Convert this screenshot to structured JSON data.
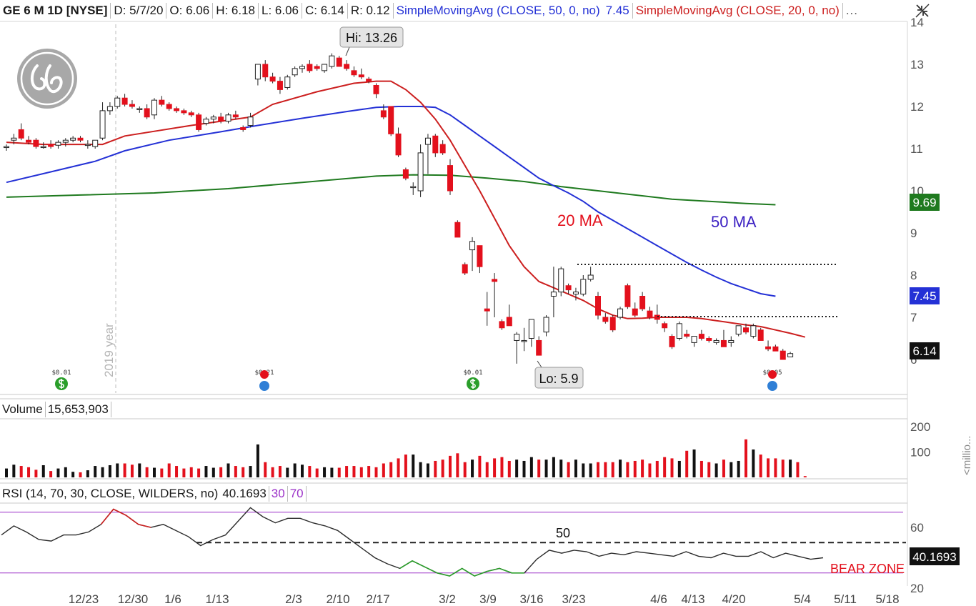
{
  "header": {
    "symbol": "GE 6 M 1D [NYSE]",
    "date": "D: 5/7/20",
    "open": "O: 6.06",
    "high": "H: 6.18",
    "low": "L: 6.06",
    "close": "C: 6.14",
    "range": "R: 0.12",
    "sma50_label": "SimpleMovingAvg (CLOSE, 50, 0, no)",
    "sma50_value": "7.45",
    "sma20_label": "SimpleMovingAvg (CLOSE, 20, 0, no)",
    "more": "..."
  },
  "colors": {
    "up": "#ffffff",
    "down": "#e3101c",
    "sma20": "#cc1f1f",
    "sma50": "#2431d6",
    "sma200": "#1f7a1f",
    "rsi_purple": "#9b30c8",
    "rsi_green": "#2a9e2a",
    "annot_red": "#e3101c",
    "annot_blue": "#3a1fc2"
  },
  "price_panel": {
    "hi_label": "Hi: 13.26",
    "lo_label": "Lo: 5.9",
    "year_label": "2019 year",
    "annotation_20ma": "20 MA",
    "annotation_50ma": "50 MA",
    "badge_sma200": "9.69",
    "badge_sma50": "7.45",
    "badge_last": "6.14",
    "y_ticks": [
      "6",
      "7",
      "8",
      "9",
      "10",
      "11",
      "12",
      "13",
      "14"
    ],
    "dividends": [
      "$0.01",
      "$0.21",
      "$0.01",
      "$0.05"
    ]
  },
  "volume_panel": {
    "label": "Volume",
    "value": "15,653,903",
    "y_ticks": [
      "100",
      "200"
    ],
    "unit": "<millio..."
  },
  "rsi_panel": {
    "label": "RSI (14, 70, 30, CLOSE, WILDERS, no)",
    "value": "40.1693",
    "ob_level": "70",
    "os_level": "30",
    "y_ticks": [
      "20",
      "60"
    ],
    "annotation_50": "50",
    "bear_zone": "BEAR ZONE",
    "badge": "40.1693"
  },
  "x_axis": {
    "labels": [
      "12/23",
      "12/30",
      "1/6",
      "1/13",
      "2/3",
      "2/10",
      "2/17",
      "3/2",
      "3/9",
      "3/16",
      "3/23",
      "4/6",
      "4/13",
      "4/20",
      "5/4",
      "5/11",
      "5/18"
    ]
  },
  "chart_data": {
    "type": "candlestick",
    "title": "GE 6 M 1D [NYSE]",
    "x_labels": [
      "12/23",
      "12/30",
      "1/6",
      "1/13",
      "2/3",
      "2/10",
      "2/17",
      "3/2",
      "3/9",
      "3/16",
      "3/23",
      "4/6",
      "4/13",
      "4/20",
      "5/4",
      "5/11",
      "5/18"
    ],
    "ylim": [
      5.5,
      14.2
    ],
    "candles": [
      {
        "o": 11.05,
        "h": 11.1,
        "l": 10.95,
        "c": 11.05
      },
      {
        "o": 11.2,
        "h": 11.35,
        "l": 11.1,
        "c": 11.25
      },
      {
        "o": 11.45,
        "h": 11.6,
        "l": 11.2,
        "c": 11.25
      },
      {
        "o": 11.2,
        "h": 11.3,
        "l": 11.1,
        "c": 11.15
      },
      {
        "o": 11.2,
        "h": 11.25,
        "l": 11.0,
        "c": 11.05
      },
      {
        "o": 11.05,
        "h": 11.15,
        "l": 11.0,
        "c": 11.05
      },
      {
        "o": 11.1,
        "h": 11.2,
        "l": 11.0,
        "c": 11.05
      },
      {
        "o": 11.08,
        "h": 11.2,
        "l": 11.0,
        "c": 11.15
      },
      {
        "o": 11.15,
        "h": 11.25,
        "l": 11.05,
        "c": 11.2
      },
      {
        "o": 11.2,
        "h": 11.3,
        "l": 11.15,
        "c": 11.25
      },
      {
        "o": 11.25,
        "h": 11.3,
        "l": 11.15,
        "c": 11.2
      },
      {
        "o": 11.1,
        "h": 11.2,
        "l": 11.0,
        "c": 11.1
      },
      {
        "o": 11.05,
        "h": 11.2,
        "l": 11.0,
        "c": 11.2
      },
      {
        "o": 11.25,
        "h": 12.1,
        "l": 11.2,
        "c": 11.9
      },
      {
        "o": 11.9,
        "h": 12.1,
        "l": 11.8,
        "c": 12.0
      },
      {
        "o": 12.0,
        "h": 12.25,
        "l": 11.95,
        "c": 12.2
      },
      {
        "o": 12.2,
        "h": 12.3,
        "l": 12.0,
        "c": 12.05
      },
      {
        "o": 12.05,
        "h": 12.15,
        "l": 11.95,
        "c": 12.0
      },
      {
        "o": 11.95,
        "h": 12.0,
        "l": 11.85,
        "c": 11.95
      },
      {
        "o": 11.95,
        "h": 12.05,
        "l": 11.7,
        "c": 11.75
      },
      {
        "o": 11.8,
        "h": 12.2,
        "l": 11.7,
        "c": 12.15
      },
      {
        "o": 12.15,
        "h": 12.25,
        "l": 12.0,
        "c": 12.05
      },
      {
        "o": 12.05,
        "h": 12.1,
        "l": 11.9,
        "c": 11.95
      },
      {
        "o": 11.95,
        "h": 12.0,
        "l": 11.85,
        "c": 11.9
      },
      {
        "o": 11.9,
        "h": 11.95,
        "l": 11.8,
        "c": 11.85
      },
      {
        "o": 11.85,
        "h": 11.9,
        "l": 11.75,
        "c": 11.8
      },
      {
        "o": 11.8,
        "h": 11.85,
        "l": 11.4,
        "c": 11.45
      },
      {
        "o": 11.6,
        "h": 11.75,
        "l": 11.55,
        "c": 11.7
      },
      {
        "o": 11.7,
        "h": 11.8,
        "l": 11.6,
        "c": 11.75
      },
      {
        "o": 11.75,
        "h": 11.85,
        "l": 11.6,
        "c": 11.65
      },
      {
        "o": 11.65,
        "h": 11.85,
        "l": 11.6,
        "c": 11.8
      },
      {
        "o": 11.8,
        "h": 11.9,
        "l": 11.7,
        "c": 11.75
      },
      {
        "o": 11.5,
        "h": 11.55,
        "l": 11.4,
        "c": 11.45
      },
      {
        "o": 11.55,
        "h": 11.85,
        "l": 11.5,
        "c": 11.75
      },
      {
        "o": 12.65,
        "h": 13.0,
        "l": 12.5,
        "c": 13.0
      },
      {
        "o": 13.0,
        "h": 13.1,
        "l": 12.6,
        "c": 12.7
      },
      {
        "o": 12.7,
        "h": 12.8,
        "l": 12.55,
        "c": 12.6
      },
      {
        "o": 12.6,
        "h": 12.7,
        "l": 12.3,
        "c": 12.4
      },
      {
        "o": 12.45,
        "h": 12.75,
        "l": 12.4,
        "c": 12.7
      },
      {
        "o": 12.75,
        "h": 12.95,
        "l": 12.7,
        "c": 12.9
      },
      {
        "o": 12.9,
        "h": 13.0,
        "l": 12.8,
        "c": 12.95
      },
      {
        "o": 13.0,
        "h": 13.1,
        "l": 12.8,
        "c": 12.85
      },
      {
        "o": 12.95,
        "h": 13.0,
        "l": 12.85,
        "c": 12.9
      },
      {
        "o": 12.85,
        "h": 13.0,
        "l": 12.8,
        "c": 13.0
      },
      {
        "o": 12.95,
        "h": 13.26,
        "l": 12.9,
        "c": 13.2
      },
      {
        "o": 13.15,
        "h": 13.2,
        "l": 12.95,
        "c": 12.95
      },
      {
        "o": 13.0,
        "h": 13.1,
        "l": 12.85,
        "c": 12.9
      },
      {
        "o": 12.85,
        "h": 12.95,
        "l": 12.7,
        "c": 12.75
      },
      {
        "o": 12.75,
        "h": 12.9,
        "l": 12.65,
        "c": 12.7
      },
      {
        "o": 12.65,
        "h": 12.7,
        "l": 12.55,
        "c": 12.6
      },
      {
        "o": 12.5,
        "h": 12.55,
        "l": 12.2,
        "c": 12.3
      },
      {
        "o": 11.9,
        "h": 12.05,
        "l": 11.7,
        "c": 11.75
      },
      {
        "o": 12.0,
        "h": 12.0,
        "l": 11.3,
        "c": 11.35
      },
      {
        "o": 11.35,
        "h": 11.5,
        "l": 10.8,
        "c": 10.85
      },
      {
        "o": 10.5,
        "h": 10.55,
        "l": 10.25,
        "c": 10.3
      },
      {
        "o": 10.1,
        "h": 10.2,
        "l": 9.9,
        "c": 10.1
      },
      {
        "o": 10.0,
        "h": 11.1,
        "l": 9.85,
        "c": 10.9
      },
      {
        "o": 11.1,
        "h": 11.35,
        "l": 10.4,
        "c": 11.25
      },
      {
        "o": 11.3,
        "h": 11.35,
        "l": 10.8,
        "c": 10.9
      },
      {
        "o": 11.1,
        "h": 11.2,
        "l": 10.85,
        "c": 10.9
      },
      {
        "o": 10.6,
        "h": 10.75,
        "l": 9.9,
        "c": 10.0
      },
      {
        "o": 9.25,
        "h": 9.3,
        "l": 8.9,
        "c": 8.9
      },
      {
        "o": 8.25,
        "h": 8.3,
        "l": 8.0,
        "c": 8.05
      },
      {
        "o": 8.6,
        "h": 8.9,
        "l": 8.1,
        "c": 8.8
      },
      {
        "o": 8.7,
        "h": 8.7,
        "l": 8.05,
        "c": 8.2
      },
      {
        "o": 7.2,
        "h": 7.6,
        "l": 6.8,
        "c": 7.15
      },
      {
        "o": 7.9,
        "h": 8.05,
        "l": 7.0,
        "c": 7.85
      },
      {
        "o": 6.9,
        "h": 6.95,
        "l": 6.7,
        "c": 6.75
      },
      {
        "o": 7.0,
        "h": 7.3,
        "l": 6.8,
        "c": 6.8
      },
      {
        "o": 6.45,
        "h": 6.65,
        "l": 5.9,
        "c": 6.6
      },
      {
        "o": 6.45,
        "h": 6.75,
        "l": 6.2,
        "c": 6.45
      },
      {
        "o": 6.5,
        "h": 6.95,
        "l": 6.3,
        "c": 6.95
      },
      {
        "o": 6.45,
        "h": 6.55,
        "l": 6.1,
        "c": 6.1
      },
      {
        "o": 6.65,
        "h": 7.05,
        "l": 6.55,
        "c": 7.0
      },
      {
        "o": 7.5,
        "h": 8.2,
        "l": 7.0,
        "c": 7.6
      },
      {
        "o": 7.6,
        "h": 8.2,
        "l": 7.5,
        "c": 8.15
      },
      {
        "o": 7.75,
        "h": 7.8,
        "l": 7.55,
        "c": 7.65
      },
      {
        "o": 7.55,
        "h": 7.7,
        "l": 7.4,
        "c": 7.6
      },
      {
        "o": 7.55,
        "h": 8.0,
        "l": 7.5,
        "c": 7.9
      },
      {
        "o": 7.9,
        "h": 8.2,
        "l": 7.85,
        "c": 8.0
      },
      {
        "o": 7.5,
        "h": 7.6,
        "l": 6.95,
        "c": 7.05
      },
      {
        "o": 7.0,
        "h": 7.1,
        "l": 6.85,
        "c": 6.9
      },
      {
        "o": 7.0,
        "h": 7.05,
        "l": 6.65,
        "c": 6.7
      },
      {
        "o": 7.0,
        "h": 7.25,
        "l": 6.95,
        "c": 7.2
      },
      {
        "o": 7.75,
        "h": 7.8,
        "l": 7.2,
        "c": 7.25
      },
      {
        "o": 7.2,
        "h": 7.35,
        "l": 7.0,
        "c": 7.05
      },
      {
        "o": 7.5,
        "h": 7.6,
        "l": 7.15,
        "c": 7.2
      },
      {
        "o": 7.15,
        "h": 7.25,
        "l": 6.95,
        "c": 7.0
      },
      {
        "o": 7.05,
        "h": 7.3,
        "l": 6.85,
        "c": 6.95
      },
      {
        "o": 6.85,
        "h": 6.9,
        "l": 6.65,
        "c": 6.75
      },
      {
        "o": 6.55,
        "h": 6.6,
        "l": 6.25,
        "c": 6.3
      },
      {
        "o": 6.5,
        "h": 6.9,
        "l": 6.45,
        "c": 6.85
      },
      {
        "o": 6.6,
        "h": 6.7,
        "l": 6.5,
        "c": 6.55
      },
      {
        "o": 6.4,
        "h": 6.55,
        "l": 6.3,
        "c": 6.55
      },
      {
        "o": 6.6,
        "h": 6.7,
        "l": 6.45,
        "c": 6.5
      },
      {
        "o": 6.5,
        "h": 6.55,
        "l": 6.4,
        "c": 6.45
      },
      {
        "o": 6.4,
        "h": 6.5,
        "l": 6.35,
        "c": 6.45
      },
      {
        "o": 6.45,
        "h": 6.7,
        "l": 6.3,
        "c": 6.3
      },
      {
        "o": 6.4,
        "h": 6.55,
        "l": 6.3,
        "c": 6.45
      },
      {
        "o": 6.6,
        "h": 6.8,
        "l": 6.55,
        "c": 6.8
      },
      {
        "o": 6.75,
        "h": 6.85,
        "l": 6.6,
        "c": 6.65
      },
      {
        "o": 6.55,
        "h": 6.85,
        "l": 6.5,
        "c": 6.8
      },
      {
        "o": 6.7,
        "h": 6.75,
        "l": 6.45,
        "c": 6.45
      },
      {
        "o": 6.3,
        "h": 6.45,
        "l": 6.2,
        "c": 6.25
      },
      {
        "o": 6.3,
        "h": 6.35,
        "l": 6.2,
        "c": 6.2
      },
      {
        "o": 6.2,
        "h": 6.25,
        "l": 6.0,
        "c": 6.0
      },
      {
        "o": 6.06,
        "h": 6.18,
        "l": 6.06,
        "c": 6.14
      }
    ],
    "sma20": [
      [
        0,
        11.15
      ],
      [
        5,
        11.1
      ],
      [
        13,
        11.1
      ],
      [
        16,
        11.3
      ],
      [
        25,
        11.55
      ],
      [
        33,
        11.75
      ],
      [
        36,
        12.05
      ],
      [
        42,
        12.35
      ],
      [
        47,
        12.55
      ],
      [
        50,
        12.6
      ],
      [
        52,
        12.6
      ],
      [
        54,
        12.4
      ],
      [
        56,
        12.1
      ],
      [
        58,
        11.7
      ],
      [
        60,
        11.2
      ],
      [
        62,
        10.6
      ],
      [
        64,
        10.0
      ],
      [
        66,
        9.35
      ],
      [
        68,
        8.7
      ],
      [
        70,
        8.2
      ],
      [
        72,
        7.85
      ],
      [
        74,
        7.7
      ],
      [
        76,
        7.55
      ],
      [
        78,
        7.4
      ],
      [
        80,
        7.2
      ],
      [
        82,
        7.05
      ],
      [
        84,
        6.97
      ],
      [
        86,
        6.98
      ],
      [
        88,
        7.0
      ],
      [
        90,
        7.0
      ],
      [
        92,
        7.0
      ],
      [
        94,
        6.97
      ],
      [
        96,
        6.92
      ],
      [
        98,
        6.87
      ],
      [
        100,
        6.82
      ],
      [
        102,
        6.78
      ],
      [
        104,
        6.7
      ],
      [
        106,
        6.62
      ],
      [
        108,
        6.53
      ]
    ],
    "sma50": [
      [
        0,
        10.2
      ],
      [
        6,
        10.45
      ],
      [
        12,
        10.7
      ],
      [
        16,
        10.95
      ],
      [
        22,
        11.2
      ],
      [
        29,
        11.4
      ],
      [
        34,
        11.55
      ],
      [
        40,
        11.72
      ],
      [
        46,
        11.88
      ],
      [
        50,
        11.98
      ],
      [
        53,
        12.0
      ],
      [
        56,
        12.0
      ],
      [
        58,
        11.98
      ],
      [
        60,
        11.8
      ],
      [
        62,
        11.55
      ],
      [
        64,
        11.3
      ],
      [
        66,
        11.05
      ],
      [
        68,
        10.8
      ],
      [
        70,
        10.55
      ],
      [
        72,
        10.3
      ],
      [
        74,
        10.12
      ],
      [
        76,
        9.95
      ],
      [
        78,
        9.75
      ],
      [
        80,
        9.5
      ],
      [
        82,
        9.3
      ],
      [
        84,
        9.1
      ],
      [
        86,
        8.9
      ],
      [
        88,
        8.7
      ],
      [
        90,
        8.5
      ],
      [
        92,
        8.3
      ],
      [
        94,
        8.12
      ],
      [
        96,
        7.95
      ],
      [
        98,
        7.8
      ],
      [
        100,
        7.68
      ],
      [
        102,
        7.56
      ],
      [
        104,
        7.5
      ]
    ],
    "sma200": [
      [
        0,
        9.85
      ],
      [
        10,
        9.9
      ],
      [
        20,
        9.95
      ],
      [
        30,
        10.05
      ],
      [
        40,
        10.2
      ],
      [
        50,
        10.35
      ],
      [
        55,
        10.38
      ],
      [
        60,
        10.37
      ],
      [
        65,
        10.3
      ],
      [
        70,
        10.22
      ],
      [
        75,
        10.1
      ],
      [
        80,
        10.0
      ],
      [
        85,
        9.9
      ],
      [
        90,
        9.8
      ],
      [
        95,
        9.75
      ],
      [
        100,
        9.7
      ],
      [
        104,
        9.67
      ]
    ],
    "volume": [
      35,
      50,
      45,
      40,
      30,
      48,
      25,
      35,
      40,
      22,
      20,
      28,
      45,
      40,
      48,
      55,
      55,
      50,
      55,
      40,
      38,
      35,
      55,
      45,
      35,
      40,
      35,
      45,
      38,
      40,
      55,
      45,
      40,
      45,
      130,
      60,
      40,
      45,
      38,
      55,
      50,
      45,
      35,
      40,
      38,
      38,
      45,
      45,
      40,
      45,
      40,
      55,
      60,
      75,
      90,
      90,
      60,
      55,
      65,
      70,
      85,
      95,
      60,
      70,
      85,
      60,
      75,
      80,
      65,
      70,
      65,
      80,
      70,
      70,
      80,
      70,
      60,
      70,
      55,
      55,
      60,
      60,
      60,
      70,
      60,
      65,
      70,
      55,
      65,
      80,
      75,
      65,
      105,
      110,
      65,
      60,
      55,
      70,
      60,
      65,
      150,
      110,
      90,
      75,
      75,
      70,
      70,
      60,
      5
    ],
    "volume_ylim": [
      0,
      220
    ],
    "rsi": [
      [
        0,
        55
      ],
      [
        2,
        61
      ],
      [
        4,
        57
      ],
      [
        6,
        52
      ],
      [
        8,
        51
      ],
      [
        10,
        55
      ],
      [
        12,
        55
      ],
      [
        14,
        57
      ],
      [
        16,
        62
      ],
      [
        18,
        72
      ],
      [
        20,
        68
      ],
      [
        22,
        62
      ],
      [
        24,
        60
      ],
      [
        26,
        62
      ],
      [
        28,
        58
      ],
      [
        30,
        54
      ],
      [
        32,
        48
      ],
      [
        34,
        52
      ],
      [
        36,
        55
      ],
      [
        38,
        64
      ],
      [
        40,
        73
      ],
      [
        42,
        67
      ],
      [
        44,
        63
      ],
      [
        46,
        66
      ],
      [
        48,
        66
      ],
      [
        50,
        63
      ],
      [
        52,
        61
      ],
      [
        54,
        58
      ],
      [
        56,
        52
      ],
      [
        58,
        46
      ],
      [
        60,
        40
      ],
      [
        62,
        36
      ],
      [
        64,
        33
      ],
      [
        66,
        38
      ],
      [
        68,
        34
      ],
      [
        70,
        30
      ],
      [
        72,
        28
      ],
      [
        74,
        33
      ],
      [
        76,
        28
      ],
      [
        78,
        31
      ],
      [
        80,
        33
      ],
      [
        82,
        30
      ],
      [
        84,
        30
      ],
      [
        86,
        39
      ],
      [
        88,
        45
      ],
      [
        90,
        43
      ],
      [
        92,
        45
      ],
      [
        94,
        44
      ],
      [
        96,
        41
      ],
      [
        98,
        43
      ],
      [
        100,
        42
      ],
      [
        102,
        44
      ],
      [
        104,
        43
      ],
      [
        106,
        42
      ],
      [
        108,
        41
      ],
      [
        110,
        44
      ],
      [
        112,
        41
      ],
      [
        114,
        40
      ],
      [
        116,
        43
      ],
      [
        118,
        41
      ],
      [
        120,
        41
      ],
      [
        122,
        44
      ],
      [
        124,
        40
      ],
      [
        126,
        43
      ],
      [
        128,
        41
      ],
      [
        130,
        39
      ],
      [
        132,
        40
      ]
    ],
    "rsi_ylim": [
      20,
      80
    ],
    "rsi_levels": [
      70,
      50,
      30
    ]
  }
}
